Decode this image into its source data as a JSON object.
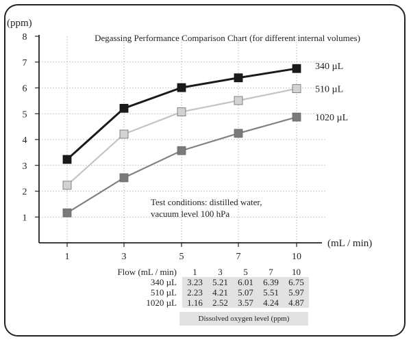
{
  "chart_data": {
    "type": "line",
    "title": "Degassing Performance Comparison Chart (for different internal volumes)",
    "ylabel": "(ppm)",
    "xlabel": "(mL / min)",
    "x": [
      1,
      3,
      5,
      7,
      10
    ],
    "x_ticks": [
      "1",
      "3",
      "5",
      "7",
      "10"
    ],
    "ylim": [
      0,
      8
    ],
    "y_ticks": [
      "1",
      "2",
      "3",
      "4",
      "5",
      "6",
      "7",
      "8"
    ],
    "grid": true,
    "series": [
      {
        "name": "340 µL",
        "values": [
          3.23,
          5.21,
          6.01,
          6.39,
          6.75
        ],
        "color": "#1a1a1a",
        "marker": "#1a1a1a"
      },
      {
        "name": "510 µL",
        "values": [
          2.23,
          4.21,
          5.07,
          5.51,
          5.97
        ],
        "color": "#c4c4c4",
        "marker": "#d2d2d2"
      },
      {
        "name": "1020 µL",
        "values": [
          1.16,
          2.52,
          3.57,
          4.24,
          4.87
        ],
        "color": "#808080",
        "marker": "#7a7a7a"
      }
    ],
    "annotation": [
      "Test conditions: distilled water,",
      "vacuum level 100 hPa"
    ]
  },
  "table": {
    "header_label": "Flow (mL / min)",
    "header_values": [
      "1",
      "3",
      "5",
      "7",
      "10"
    ],
    "rows": [
      {
        "label": "340 µL",
        "values": [
          "3.23",
          "5.21",
          "6.01",
          "6.39",
          "6.75"
        ]
      },
      {
        "label": "510 µL",
        "values": [
          "2.23",
          "4.21",
          "5.07",
          "5.51",
          "5.97"
        ]
      },
      {
        "label": "1020 µL",
        "values": [
          "1.16",
          "2.52",
          "3.57",
          "4.24",
          "4.87"
        ]
      }
    ],
    "caption": "Dissolved oxygen level (ppm)"
  }
}
